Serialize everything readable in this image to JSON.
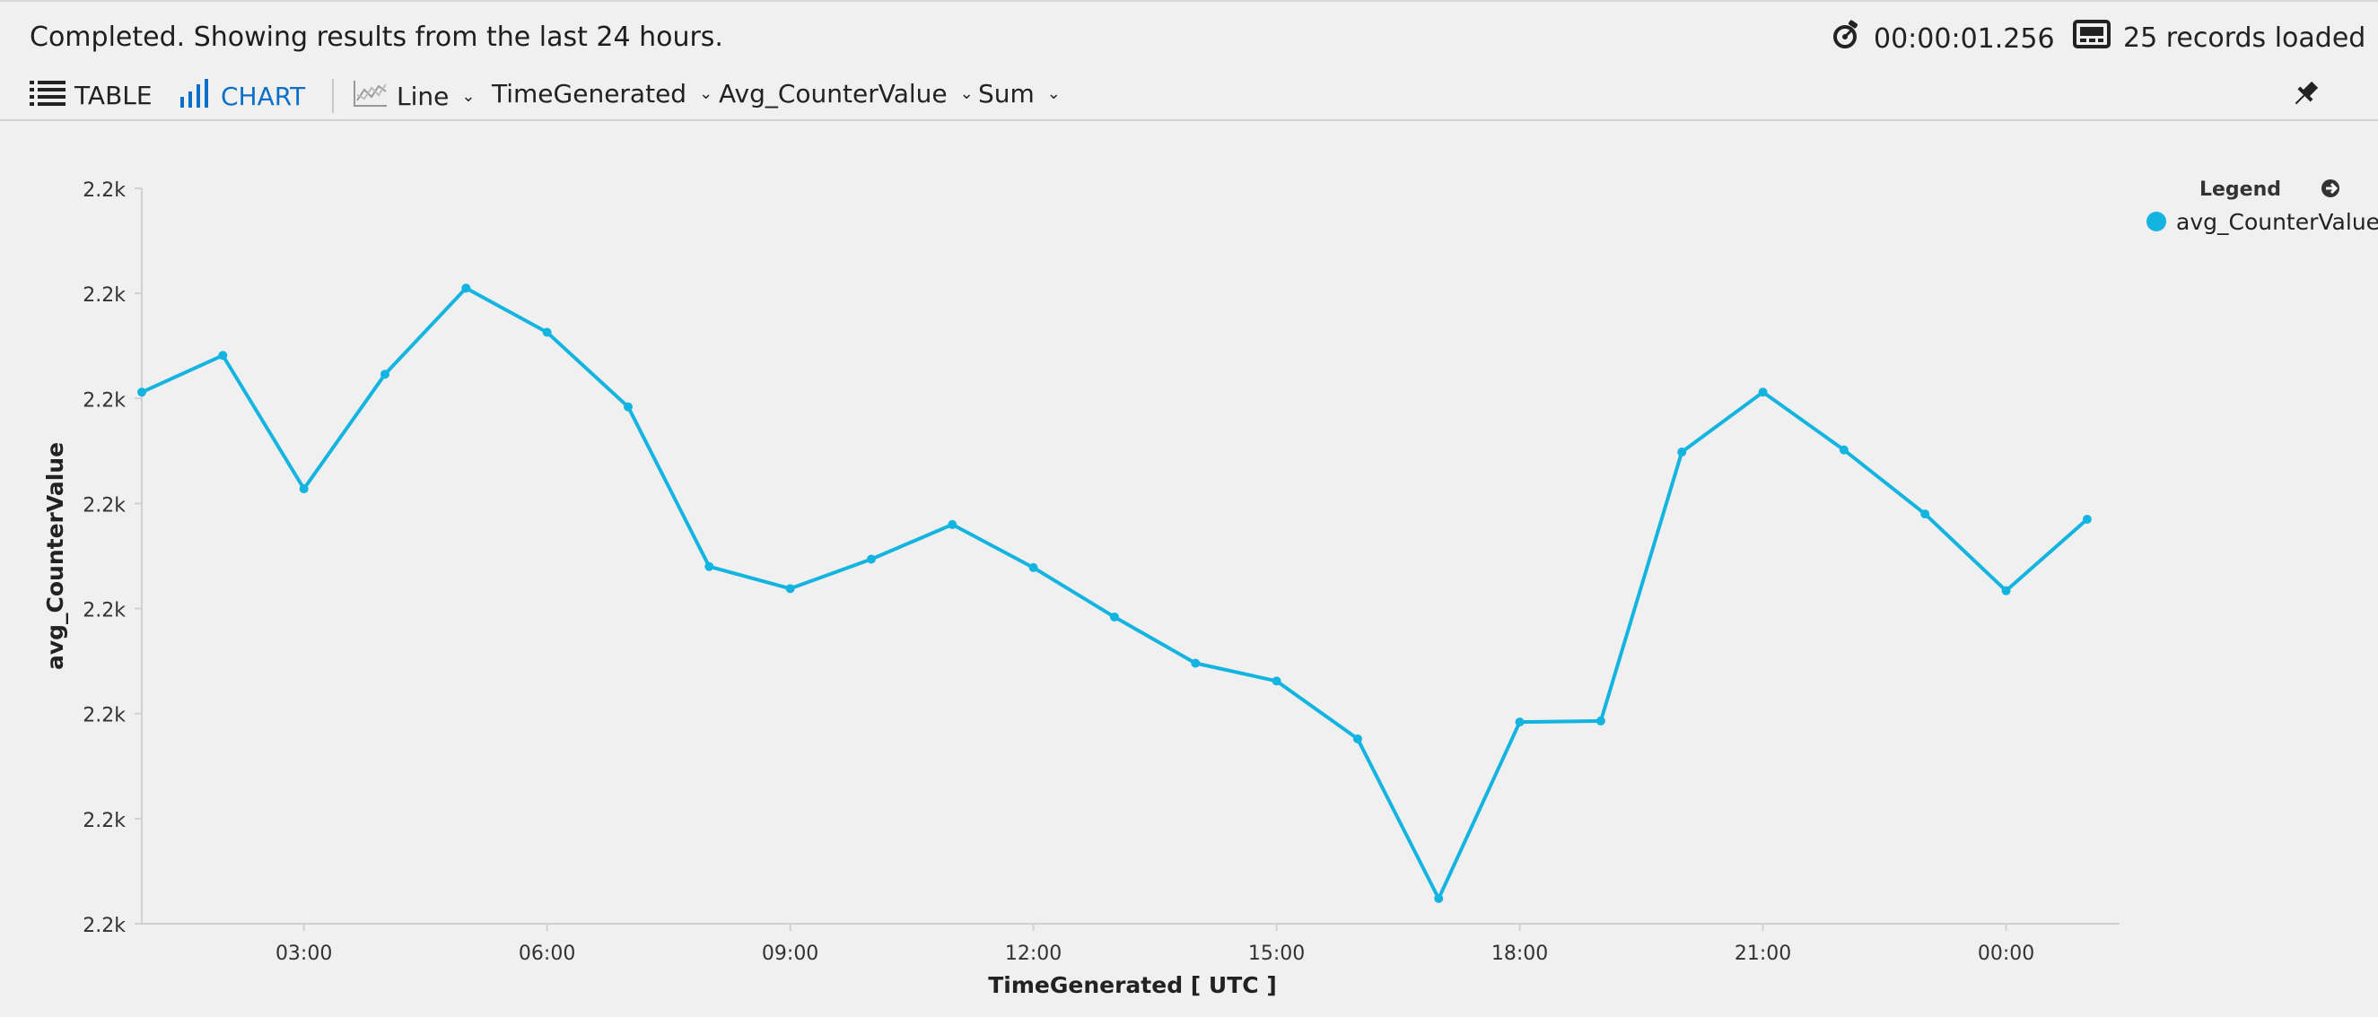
{
  "header": {
    "status": "Completed. Showing results from the last 24 hours.",
    "elapsed": "00:00:01.256",
    "records": "25 records loaded"
  },
  "toolbar": {
    "table_label": "TABLE",
    "chart_label": "CHART",
    "chart_type": "Line",
    "x_column": "TimeGenerated",
    "y_column": "Avg_CounterValue",
    "aggregation": "Sum"
  },
  "legend": {
    "title": "Legend",
    "series_name": "avg_CounterValue"
  },
  "colors": {
    "series": "#14b4e1",
    "accent": "#0b6fc7"
  },
  "icons": {
    "table": "list-icon",
    "chart": "bar-chart-icon",
    "line": "line-chart-icon",
    "timer": "stopwatch-icon",
    "records": "records-icon",
    "pin": "pin-icon",
    "legend_toggle": "arrow-circle-right-icon"
  },
  "chart_data": {
    "type": "line",
    "xlabel": "TimeGenerated [ UTC ]",
    "ylabel": "avg_CounterValue",
    "x_ticks": [
      "03:00",
      "06:00",
      "09:00",
      "12:00",
      "15:00",
      "18:00",
      "21:00",
      "00:00"
    ],
    "y_ticks": [
      "2.2k",
      "2.2k",
      "2.2k",
      "2.2k",
      "2.2k",
      "2.2k",
      "2.2k",
      "2.2k"
    ],
    "ylim": [
      0,
      7
    ],
    "xlim": [
      1,
      25.4
    ],
    "grid": false,
    "legend_position": "top-right",
    "series": [
      {
        "name": "avg_CounterValue",
        "x": [
          1,
          2,
          3,
          4,
          5,
          6,
          7,
          8,
          9,
          10,
          11,
          12,
          13,
          14,
          15,
          16,
          17,
          18,
          19,
          20,
          21,
          22,
          23,
          24,
          25
        ],
        "values": [
          5.06,
          5.41,
          4.14,
          5.23,
          6.05,
          5.63,
          4.92,
          3.4,
          3.19,
          3.47,
          3.8,
          3.39,
          2.92,
          2.48,
          2.31,
          1.76,
          0.24,
          1.92,
          1.93,
          4.49,
          5.06,
          4.51,
          3.9,
          3.17,
          3.85
        ]
      }
    ]
  }
}
